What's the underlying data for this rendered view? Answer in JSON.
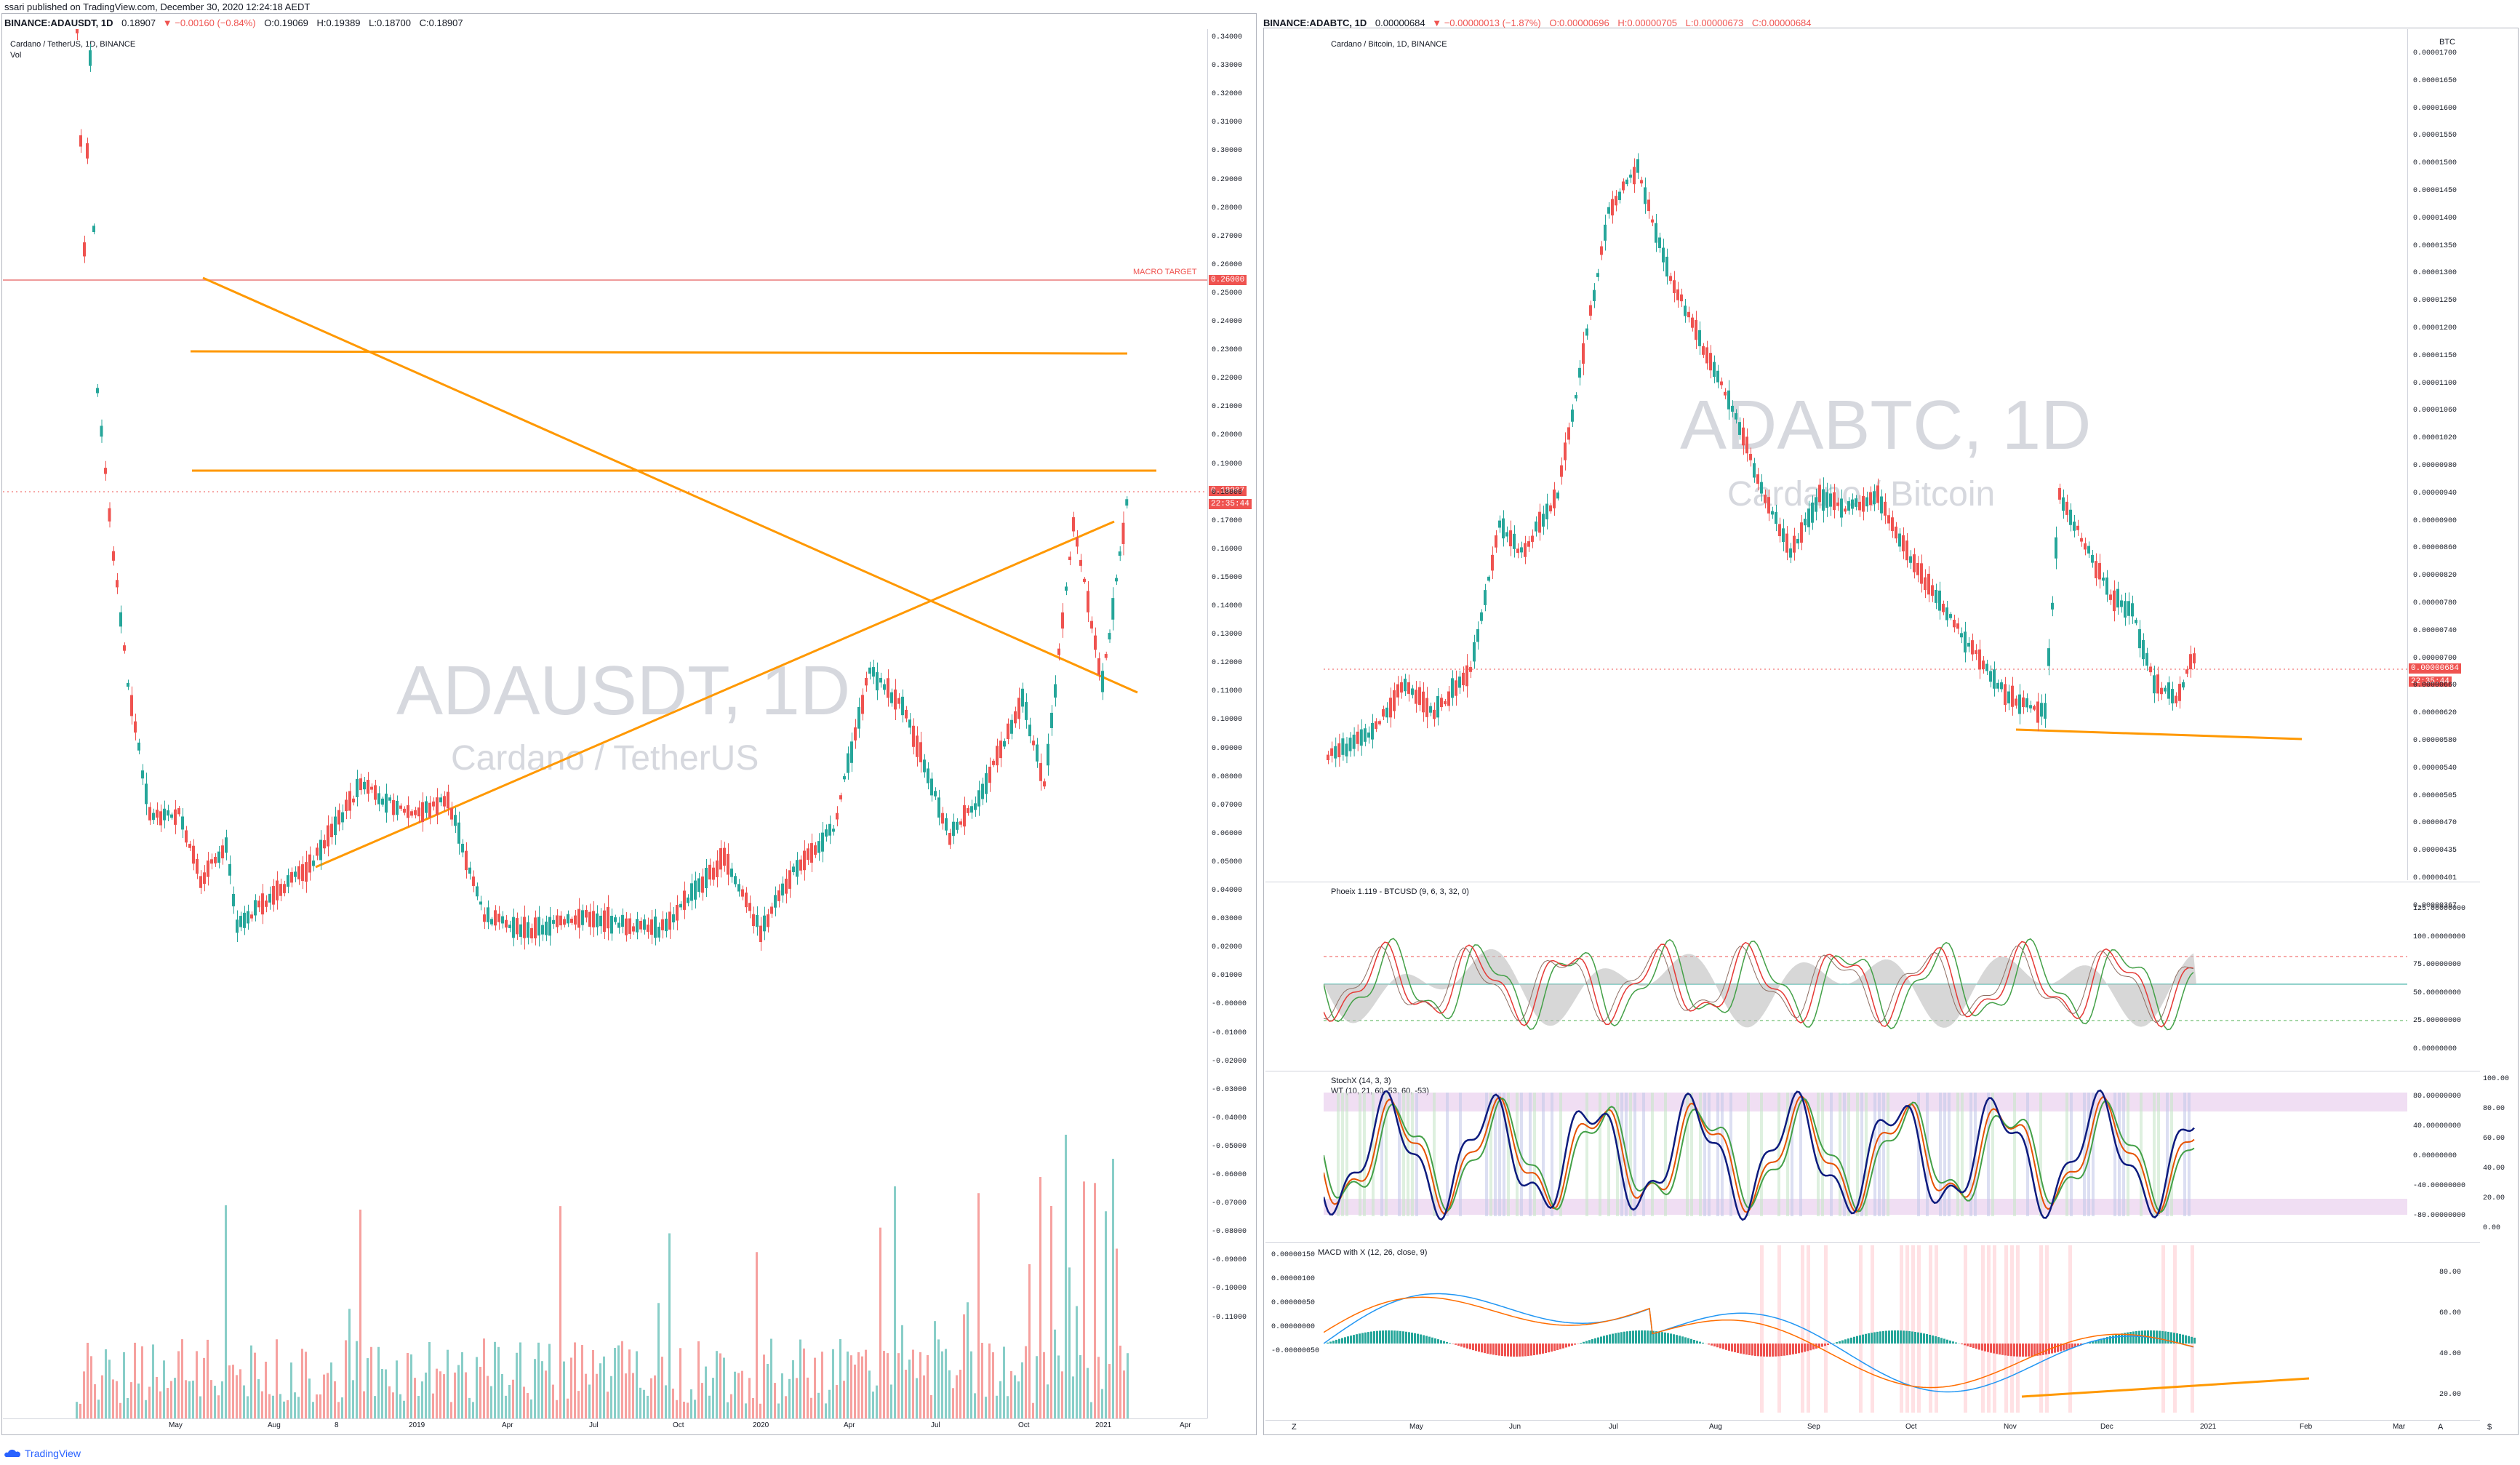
{
  "publish_line": "ssari published on TradingView.com, December 30, 2020 12:24:18 AEDT",
  "left": {
    "ohlc": {
      "symbol": "BINANCE:ADAUSDT, 1D",
      "last": "0.18907",
      "change": "▼ −0.00160 (−0.84%)",
      "o": "O:0.19069",
      "h": "H:0.19389",
      "l": "L:0.18700",
      "c": "C:0.18907"
    },
    "title": "Cardano / TetherUS, 1D, BINANCE",
    "vol": "Vol",
    "watermark_big": "ADAUSDT, 1D",
    "watermark_small": "Cardano / TetherUS",
    "macro_target_label": "MACRO TARGET",
    "macro_target_price": "0.26000",
    "current_price": "0.18907",
    "countdown": "22:35:44",
    "y_ticks": [
      "0.34000",
      "0.33000",
      "0.32000",
      "0.31000",
      "0.30000",
      "0.29000",
      "0.28000",
      "0.27000",
      "0.26000",
      "0.25000",
      "0.24000",
      "0.23000",
      "0.22000",
      "0.21000",
      "0.20000",
      "0.19000",
      "0.18000",
      "0.17000",
      "0.16000",
      "0.15000",
      "0.14000",
      "0.13000",
      "0.12000",
      "0.11000",
      "0.10000",
      "0.09000",
      "0.08000",
      "0.07000",
      "0.06000",
      "0.05000",
      "0.04000",
      "0.03000",
      "0.02000",
      "0.01000",
      "-0.00000",
      "-0.01000",
      "-0.02000",
      "-0.03000",
      "-0.04000",
      "-0.05000",
      "-0.06000",
      "-0.07000",
      "-0.08000",
      "-0.09000",
      "-0.10000",
      "-0.11000"
    ],
    "x_ticks": [
      "May",
      "Aug",
      "8",
      "2019",
      "Apr",
      "Jul",
      "Oct",
      "2020",
      "Apr",
      "Jul",
      "Oct",
      "2021",
      "Apr"
    ]
  },
  "right": {
    "ohlc": {
      "symbol": "BINANCE:ADABTC, 1D",
      "last": "0.00000684",
      "change": "▼ −0.00000013 (−1.87%)",
      "o": "O:0.00000696",
      "h": "H:0.00000705",
      "l": "L:0.00000673",
      "c": "C:0.00000684"
    },
    "title": "Cardano / Bitcoin, 1D, BINANCE",
    "currency": "BTC",
    "watermark_big": "ADABTC, 1D",
    "watermark_small": "Cardano / Bitcoin",
    "current_price": "0.00000684",
    "countdown": "22:35:44",
    "y_ticks": [
      "0.00001700",
      "0.00001650",
      "0.00001600",
      "0.00001550",
      "0.00001500",
      "0.00001450",
      "0.00001400",
      "0.00001350",
      "0.00001300",
      "0.00001250",
      "0.00001200",
      "0.00001150",
      "0.00001100",
      "0.00001060",
      "0.00001020",
      "0.00000980",
      "0.00000940",
      "0.00000900",
      "0.00000860",
      "0.00000820",
      "0.00000780",
      "0.00000740",
      "0.00000700",
      "0.00000660",
      "0.00000620",
      "0.00000580",
      "0.00000540",
      "0.00000505",
      "0.00000470",
      "0.00000435",
      "0.00000401",
      "0.00000367"
    ],
    "phoeix": {
      "title": "Phoeix 1.119 - BTCUSD (9, 6, 3, 32, 0)",
      "ticks": [
        "125.00000000",
        "100.00000000",
        "75.00000000",
        "50.00000000",
        "25.00000000",
        "0.00000000"
      ]
    },
    "stoch": {
      "title": "StochX (14, 3, 3)",
      "title2": "WT (10, 21, 60, 53, 60, -53)",
      "ticks_left": [
        "80.00000000",
        "40.00000000",
        "0.00000000",
        "-40.00000000",
        "-80.00000000"
      ],
      "ticks_right": [
        "100.00",
        "80.00",
        "60.00",
        "40.00",
        "20.00",
        "0.00"
      ]
    },
    "macd": {
      "title": "MACD with X (12, 26, close, 9)",
      "ticks_left": [
        "0.00000150",
        "0.00000100",
        "0.00000050",
        "0.00000000",
        "-0.00000050"
      ],
      "ticks_right": [
        "80.00",
        "60.00",
        "40.00",
        "20.00"
      ]
    },
    "x_ticks": [
      "May",
      "Jun",
      "Jul",
      "Aug",
      "Sep",
      "Oct",
      "Nov",
      "Dec",
      "2021",
      "Feb",
      "Mar"
    ],
    "corner_left": "Z",
    "corner_right_a": "A",
    "corner_right_b": "$"
  },
  "footer": "TradingView",
  "colors": {
    "up": "#26a69a",
    "down": "#ef5350",
    "trend": "#ff9800",
    "macro": "#ef9a9a",
    "accent": "#2962ff"
  }
}
